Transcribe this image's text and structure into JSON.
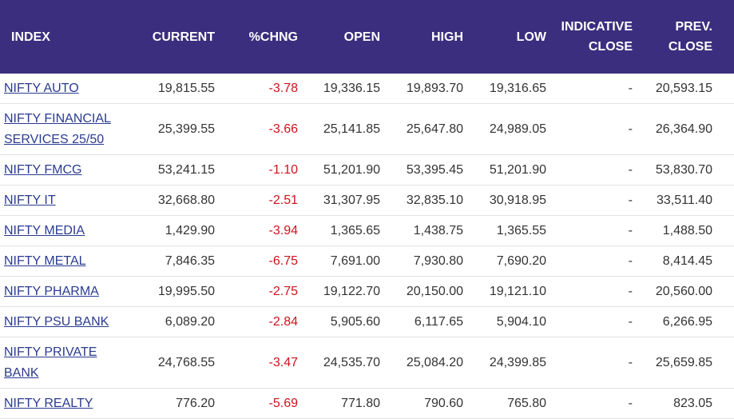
{
  "table": {
    "header": [
      "INDEX",
      "CURRENT",
      "%CHNG",
      "OPEN",
      "HIGH",
      "LOW",
      "INDICATIVE CLOSE",
      "PREV. CLOSE"
    ],
    "rows": [
      [
        "NIFTY AUTO",
        "19,815.55",
        "-3.78",
        "19,336.15",
        "19,893.70",
        "19,316.65",
        "-",
        "20,593.15"
      ],
      [
        "NIFTY FINANCIAL SERVICES 25/50",
        "25,399.55",
        "-3.66",
        "25,141.85",
        "25,647.80",
        "24,989.05",
        "-",
        "26,364.90"
      ],
      [
        "NIFTY FMCG",
        "53,241.15",
        "-1.10",
        "51,201.90",
        "53,395.45",
        "51,201.90",
        "-",
        "53,830.70"
      ],
      [
        "NIFTY IT",
        "32,668.80",
        "-2.51",
        "31,307.95",
        "32,835.10",
        "30,918.95",
        "-",
        "33,511.40"
      ],
      [
        "NIFTY MEDIA",
        "1,429.90",
        "-3.94",
        "1,365.65",
        "1,438.75",
        "1,365.55",
        "-",
        "1,488.50"
      ],
      [
        "NIFTY METAL",
        "7,846.35",
        "-6.75",
        "7,691.00",
        "7,930.80",
        "7,690.20",
        "-",
        "8,414.45"
      ],
      [
        "NIFTY PHARMA",
        "19,995.50",
        "-2.75",
        "19,122.70",
        "20,150.00",
        "19,121.10",
        "-",
        "20,560.00"
      ],
      [
        "NIFTY PSU BANK",
        "6,089.20",
        "-2.84",
        "5,905.60",
        "6,117.65",
        "5,904.10",
        "-",
        "6,266.95"
      ],
      [
        "NIFTY PRIVATE BANK",
        "24,768.55",
        "-3.47",
        "24,535.70",
        "25,084.20",
        "24,399.85",
        "-",
        "25,659.85"
      ],
      [
        "NIFTY REALTY",
        "776.20",
        "-5.69",
        "771.80",
        "790.60",
        "765.80",
        "-",
        "823.05"
      ]
    ]
  }
}
